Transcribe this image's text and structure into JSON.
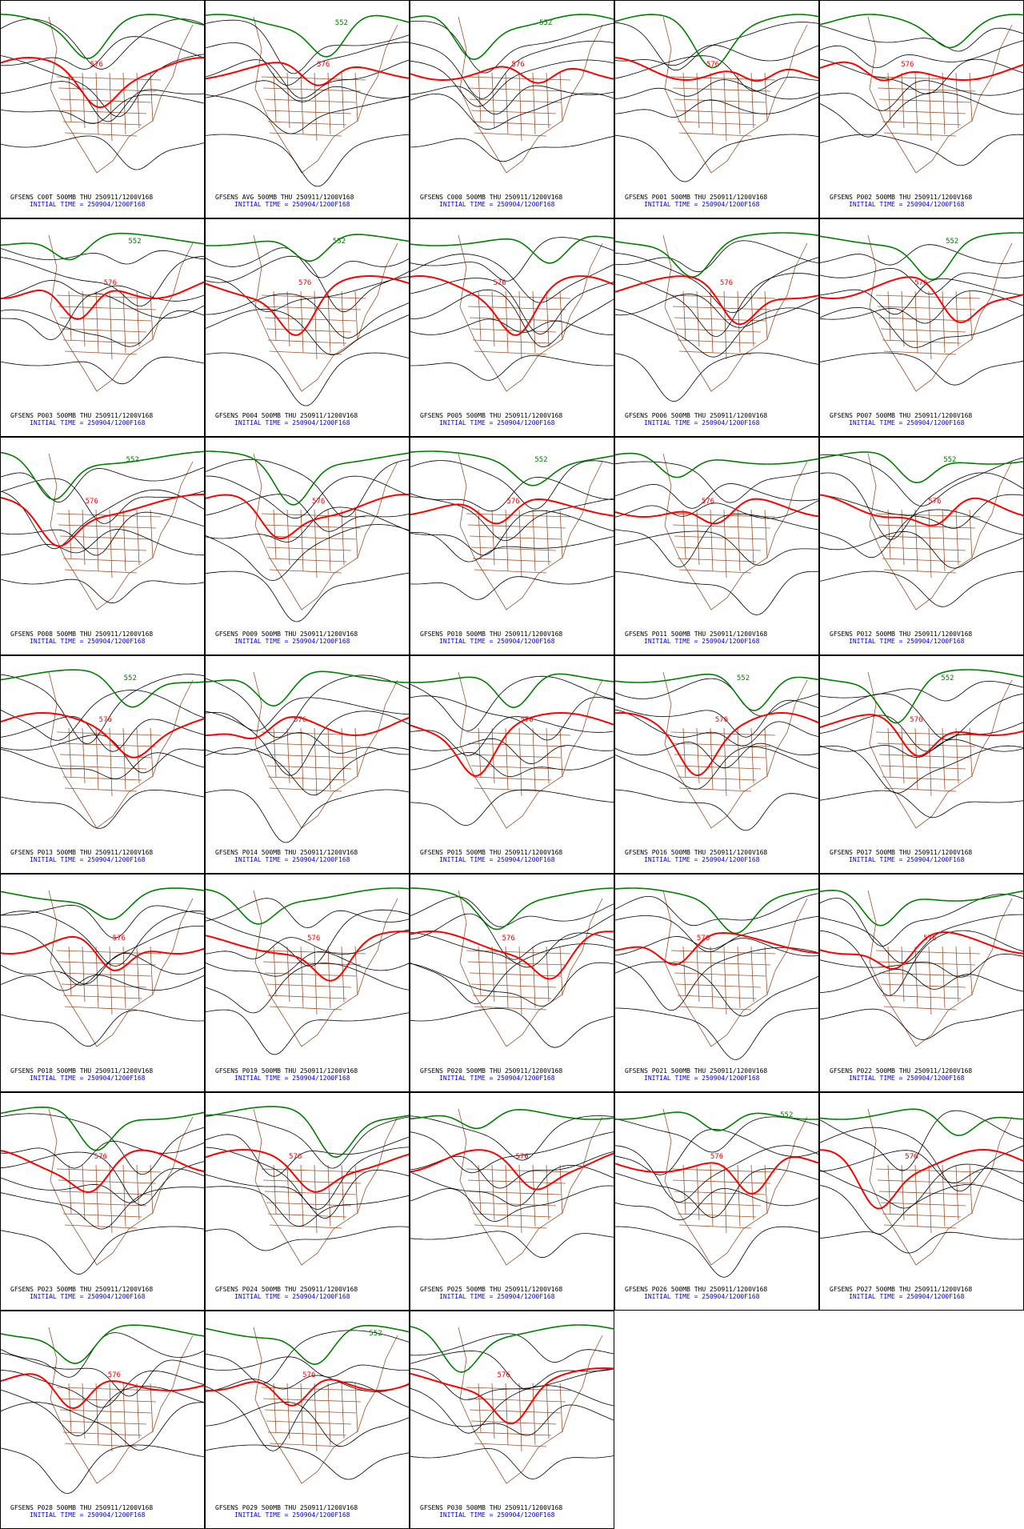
{
  "panels": [
    {
      "title": "GFSENS C00T 500MB THU 250911/1200V168",
      "subtitle": "INITIAL TIME = 250904/1200F168",
      "labels": [
        "576"
      ]
    },
    {
      "title": "GFSENS AVG 500MB THU 250911/1200V168",
      "subtitle": "INITIAL TIME = 250904/1200F168",
      "labels": [
        "576",
        "552"
      ]
    },
    {
      "title": "GFSENS C000 500MB THU 250911/1200V168",
      "subtitle": "INITIAL TIME = 250904/1200F168",
      "labels": [
        "576",
        "552"
      ]
    },
    {
      "title": "GFSENS P001 500MB THU 250911/1200V168",
      "subtitle": "INITIAL TIME = 250904/1200F168",
      "labels": [
        "576"
      ]
    },
    {
      "title": "GFSENS P002 500MB THU 250911/1200V168",
      "subtitle": "INITIAL TIME = 250904/1200F168",
      "labels": [
        "576"
      ]
    },
    {
      "title": "GFSENS P003 500MB THU 250911/1200V168",
      "subtitle": "INITIAL TIME = 250904/1200F168",
      "labels": [
        "576",
        "552"
      ]
    },
    {
      "title": "GFSENS P004 500MB THU 250911/1200V168",
      "subtitle": "INITIAL TIME = 250904/1200F168",
      "labels": [
        "576",
        "552"
      ]
    },
    {
      "title": "GFSENS P005 500MB THU 250911/1200V168",
      "subtitle": "INITIAL TIME = 250904/1200F168",
      "labels": [
        "576"
      ]
    },
    {
      "title": "GFSENS P006 500MB THU 250911/1200V168",
      "subtitle": "INITIAL TIME = 250904/1200F168",
      "labels": [
        "576"
      ]
    },
    {
      "title": "GFSENS P007 500MB THU 250911/1200V168",
      "subtitle": "INITIAL TIME = 250904/1200F168",
      "labels": [
        "576",
        "552"
      ]
    },
    {
      "title": "GFSENS P008 500MB THU 250911/1200V168",
      "subtitle": "INITIAL TIME = 250904/1200F168",
      "labels": [
        "576",
        "552"
      ]
    },
    {
      "title": "GFSENS P009 500MB THU 250911/1200V168",
      "subtitle": "INITIAL TIME = 250904/1200F168",
      "labels": [
        "576"
      ]
    },
    {
      "title": "GFSENS P010 500MB THU 250911/1200V168",
      "subtitle": "INITIAL TIME = 250904/1200F168",
      "labels": [
        "576",
        "552"
      ]
    },
    {
      "title": "GFSENS P011 500MB THU 250911/1200V168",
      "subtitle": "INITIAL TIME = 250904/1200F168",
      "labels": [
        "576"
      ]
    },
    {
      "title": "GFSENS P012 500MB THU 250911/1200V168",
      "subtitle": "INITIAL TIME = 250904/1200F168",
      "labels": [
        "576",
        "552"
      ]
    },
    {
      "title": "GFSENS P013 500MB THU 250911/1200V168",
      "subtitle": "INITIAL TIME = 250904/1200F168",
      "labels": [
        "576",
        "552"
      ]
    },
    {
      "title": "GFSENS P014 500MB THU 250911/1200V168",
      "subtitle": "INITIAL TIME = 250904/1200F168",
      "labels": [
        "576"
      ]
    },
    {
      "title": "GFSENS P015 500MB THU 250911/1200V168",
      "subtitle": "INITIAL TIME = 250904/1200F168",
      "labels": [
        "576"
      ]
    },
    {
      "title": "GFSENS P016 500MB THU 250911/1200V168",
      "subtitle": "INITIAL TIME = 250904/1200F168",
      "labels": [
        "576",
        "552"
      ]
    },
    {
      "title": "GFSENS P017 500MB THU 250911/1200V168",
      "subtitle": "INITIAL TIME = 250904/1200F168",
      "labels": [
        "576",
        "552"
      ]
    },
    {
      "title": "GFSENS P018 500MB THU 250911/1200V168",
      "subtitle": "INITIAL TIME = 250904/1200F168",
      "labels": [
        "576"
      ]
    },
    {
      "title": "GFSENS P019 500MB THU 250911/1200V168",
      "subtitle": "INITIAL TIME = 250904/1200F168",
      "labels": [
        "576"
      ]
    },
    {
      "title": "GFSENS P020 500MB THU 250911/1200V168",
      "subtitle": "INITIAL TIME = 250904/1200F168",
      "labels": [
        "576"
      ]
    },
    {
      "title": "GFSENS P021 500MB THU 250911/1200V168",
      "subtitle": "INITIAL TIME = 250904/1200F168",
      "labels": [
        "576"
      ]
    },
    {
      "title": "GFSENS P022 500MB THU 250911/1200V168",
      "subtitle": "INITIAL TIME = 250904/1200F168",
      "labels": [
        "576"
      ]
    },
    {
      "title": "GFSENS P023 500MB THU 250911/1200V168",
      "subtitle": "INITIAL TIME = 250904/1200F168",
      "labels": [
        "576"
      ]
    },
    {
      "title": "GFSENS P024 500MB THU 250911/1200V168",
      "subtitle": "INITIAL TIME = 250904/1200F168",
      "labels": [
        "576"
      ]
    },
    {
      "title": "GFSENS P025 500MB THU 250911/1200V168",
      "subtitle": "INITIAL TIME = 250904/1200F168",
      "labels": [
        "576"
      ]
    },
    {
      "title": "GFSENS P026 500MB THU 250911/1200V168",
      "subtitle": "INITIAL TIME = 250904/1200F168",
      "labels": [
        "576",
        "552"
      ]
    },
    {
      "title": "GFSENS P027 500MB THU 250911/1200V168",
      "subtitle": "INITIAL TIME = 250904/1200F168",
      "labels": [
        "576"
      ]
    },
    {
      "title": "GFSENS P028 500MB THU 250911/1200V168",
      "subtitle": "INITIAL TIME = 250904/1200F168",
      "labels": [
        "576"
      ]
    },
    {
      "title": "GFSENS P029 500MB THU 250911/1200V168",
      "subtitle": "INITIAL TIME = 250904/1200F168",
      "labels": [
        "576",
        "552"
      ]
    },
    {
      "title": "GFSENS P030 500MB THU 250911/1200V168",
      "subtitle": "INITIAL TIME = 250904/1200F168",
      "labels": [
        "576"
      ]
    }
  ]
}
